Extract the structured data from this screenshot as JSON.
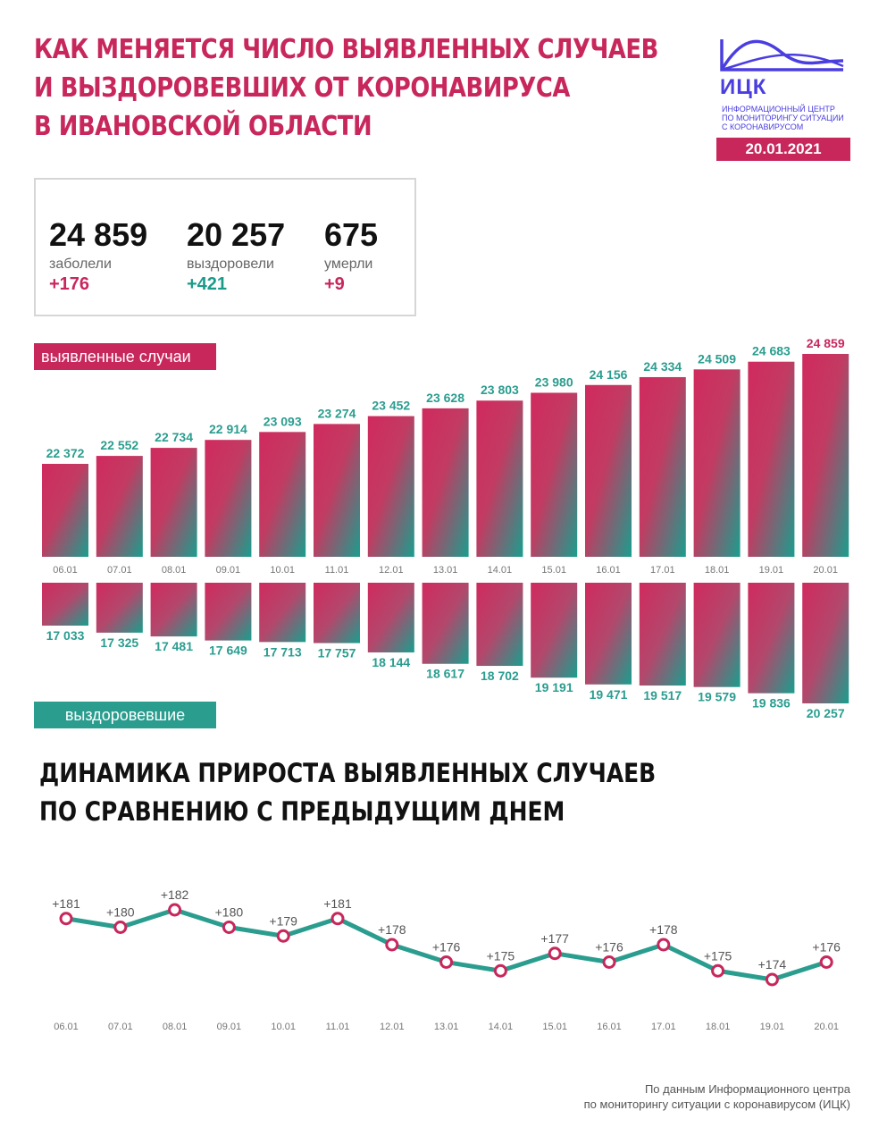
{
  "header": {
    "title_lines": [
      "КАК МЕНЯЕТСЯ ЧИСЛО ВЫЯВЛЕННЫХ СЛУЧАЕВ",
      "И ВЫЗДОРОВЕВШИХ ОТ КОРОНАВИРУСА",
      "В ИВАНОВСКОЙ ОБЛАСТИ"
    ],
    "logo_text": "ИЦК",
    "logo_sub_lines": [
      "ИНФОРМАЦИОННЫЙ ЦЕНТР",
      "ПО МОНИТОРИНГУ СИТУАЦИИ",
      "С КОРОНАВИРУСОМ"
    ],
    "date": "20.01.2021"
  },
  "stats": [
    {
      "value": "24 859",
      "label": "заболели",
      "delta": "+176",
      "color": "pink"
    },
    {
      "value": "20 257",
      "label": "выздоровели",
      "delta": "+421",
      "color": "teal"
    },
    {
      "value": "675",
      "label": "умерли",
      "delta": "+9",
      "color": "pink"
    }
  ],
  "labels": {
    "cases": "выявленные случаи",
    "recovered": "выздоровевшие"
  },
  "subtitle_lines": [
    "ДИНАМИКА ПРИРОСТА ВЫЯВЛЕННЫХ СЛУЧАЕВ",
    "ПО СРАВНЕНИЮ С ПРЕДЫДУЩИМ ДНЕМ"
  ],
  "source_lines": [
    "По данным Информационного центра",
    "по мониторингу ситуации с коронавирусом (ИЦК)"
  ],
  "colors": {
    "pink": "#c8275c",
    "teal": "#2a9d8f",
    "line": "#2a9d8f"
  },
  "chart_data": [
    {
      "type": "bar",
      "categories": [
        "06.01",
        "07.01",
        "08.01",
        "09.01",
        "10.01",
        "11.01",
        "12.01",
        "13.01",
        "14.01",
        "15.01",
        "16.01",
        "17.01",
        "18.01",
        "19.01",
        "20.01"
      ],
      "series": [
        {
          "name": "выявленные случаи",
          "values": [
            22372,
            22552,
            22734,
            22914,
            23093,
            23274,
            23452,
            23628,
            23803,
            23980,
            24156,
            24334,
            24509,
            24683,
            24859
          ]
        },
        {
          "name": "выздоровевшие",
          "values": [
            17033,
            17325,
            17481,
            17649,
            17713,
            17757,
            18144,
            18617,
            18702,
            19191,
            19471,
            19517,
            19579,
            19836,
            20257
          ]
        }
      ],
      "value_labels": {
        "cases": [
          "22 372",
          "22 552",
          "22 734",
          "22 914",
          "23 093",
          "23 274",
          "23 452",
          "23 628",
          "23 803",
          "23 980",
          "24 156",
          "24 334",
          "24 509",
          "24 683",
          "24 859"
        ],
        "recovered": [
          "17 033",
          "17 325",
          "17 481",
          "17 649",
          "17 713",
          "17 757",
          "18 144",
          "18 617",
          "18 702",
          "19 191",
          "19 471",
          "19 517",
          "19 579",
          "19 836",
          "20 257"
        ]
      }
    },
    {
      "type": "line",
      "x": [
        "06.01",
        "07.01",
        "08.01",
        "09.01",
        "10.01",
        "11.01",
        "12.01",
        "13.01",
        "14.01",
        "15.01",
        "16.01",
        "17.01",
        "18.01",
        "19.01",
        "20.01"
      ],
      "values": [
        181,
        180,
        182,
        180,
        179,
        181,
        178,
        176,
        175,
        177,
        176,
        178,
        175,
        174,
        176
      ],
      "value_labels": [
        "+181",
        "+180",
        "+182",
        "+180",
        "+179",
        "+181",
        "+178",
        "+176",
        "+175",
        "+177",
        "+176",
        "+178",
        "+175",
        "+174",
        "+176"
      ]
    }
  ]
}
